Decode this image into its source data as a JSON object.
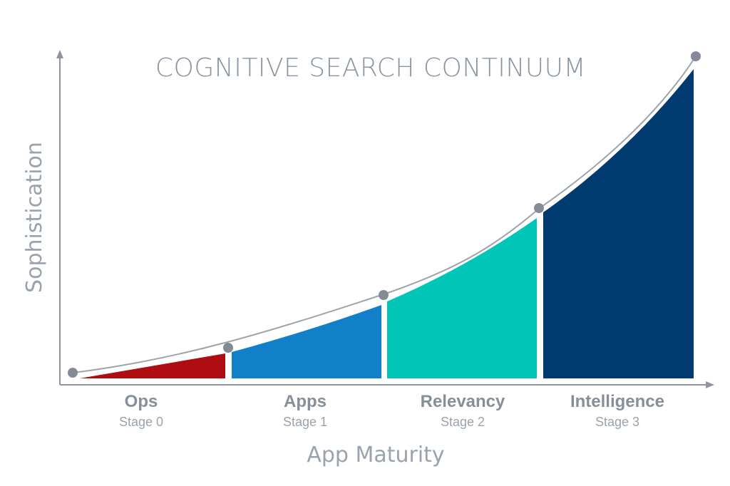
{
  "title": "COGNITIVE SEARCH CONTINUUM",
  "axes": {
    "y_label": "Sophistication",
    "x_label": "App Maturity"
  },
  "stages": [
    {
      "name": "Ops",
      "sub": "Stage 0",
      "color": "#ae0e11"
    },
    {
      "name": "Apps",
      "sub": "Stage 1",
      "color": "#1280c8"
    },
    {
      "name": "Relevancy",
      "sub": "Stage 2",
      "color": "#00c5b7"
    },
    {
      "name": "Intelligence",
      "sub": "Stage 3",
      "color": "#003a6e"
    }
  ],
  "colors": {
    "axis": "#8d959e",
    "curve": "#9ca3ab",
    "marker": "#838c96"
  }
}
